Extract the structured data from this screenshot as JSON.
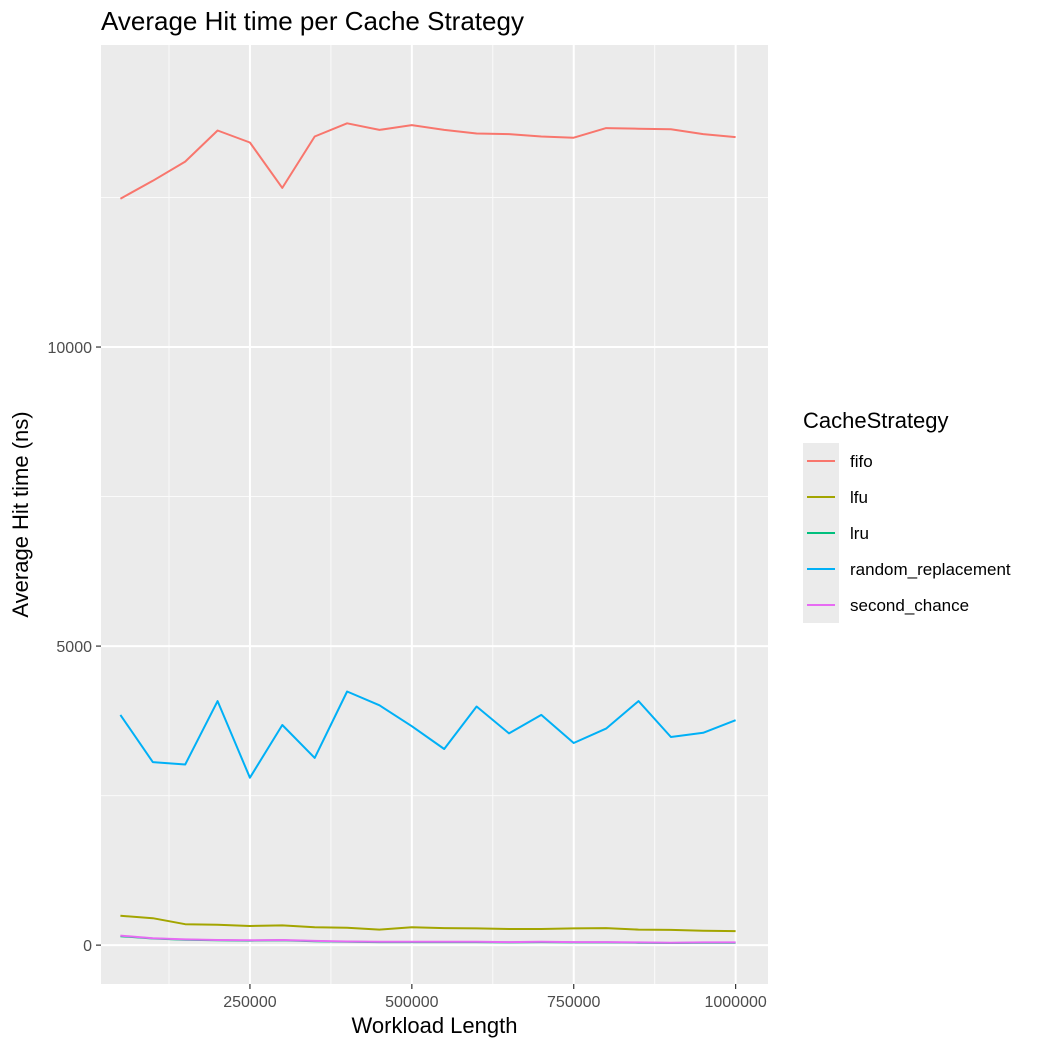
{
  "chart_data": {
    "type": "line",
    "title": "Average Hit time per Cache Strategy",
    "xlabel": "Workload Length",
    "ylabel": "Average Hit time (ns)",
    "xlim": [
      20000,
      1050000
    ],
    "ylim": [
      -650,
      15050
    ],
    "x_ticks": [
      250000,
      500000,
      750000,
      1000000
    ],
    "x_tick_labels": [
      "250000",
      "500000",
      "750000",
      "1000000"
    ],
    "y_ticks": [
      0,
      5000,
      10000
    ],
    "y_tick_labels": [
      "0",
      "5000",
      "10000"
    ],
    "grid": true,
    "legend": {
      "title": "CacheStrategy",
      "position": "right"
    },
    "x": [
      50000,
      100000,
      150000,
      200000,
      250000,
      300000,
      350000,
      400000,
      450000,
      500000,
      550000,
      600000,
      650000,
      700000,
      750000,
      800000,
      850000,
      900000,
      950000,
      1000000
    ],
    "series": [
      {
        "name": "fifo",
        "color": "#F8766D",
        "values": [
          12480,
          12780,
          13100,
          13620,
          13420,
          12660,
          13520,
          13740,
          13630,
          13710,
          13630,
          13570,
          13560,
          13520,
          13500,
          13660,
          13650,
          13640,
          13560,
          13510
        ]
      },
      {
        "name": "lfu",
        "color": "#A3A500",
        "values": [
          490,
          450,
          350,
          340,
          320,
          330,
          300,
          290,
          260,
          300,
          285,
          280,
          270,
          270,
          280,
          285,
          260,
          255,
          240,
          235
        ]
      },
      {
        "name": "lru",
        "color": "#00BF7D",
        "values": [
          150,
          110,
          90,
          80,
          75,
          80,
          65,
          55,
          50,
          50,
          50,
          50,
          45,
          50,
          45,
          45,
          40,
          35,
          40,
          40
        ]
      },
      {
        "name": "random_replacement",
        "color": "#00B0F6",
        "values": [
          3850,
          3060,
          3020,
          4080,
          2800,
          3680,
          3130,
          4240,
          4010,
          3660,
          3280,
          3990,
          3540,
          3850,
          3380,
          3620,
          4080,
          3480,
          3550,
          3760
        ]
      },
      {
        "name": "second_chance",
        "color": "#E76BF3",
        "values": [
          160,
          115,
          95,
          85,
          80,
          85,
          70,
          60,
          55,
          55,
          55,
          55,
          50,
          55,
          50,
          50,
          45,
          40,
          45,
          45
        ]
      }
    ]
  }
}
